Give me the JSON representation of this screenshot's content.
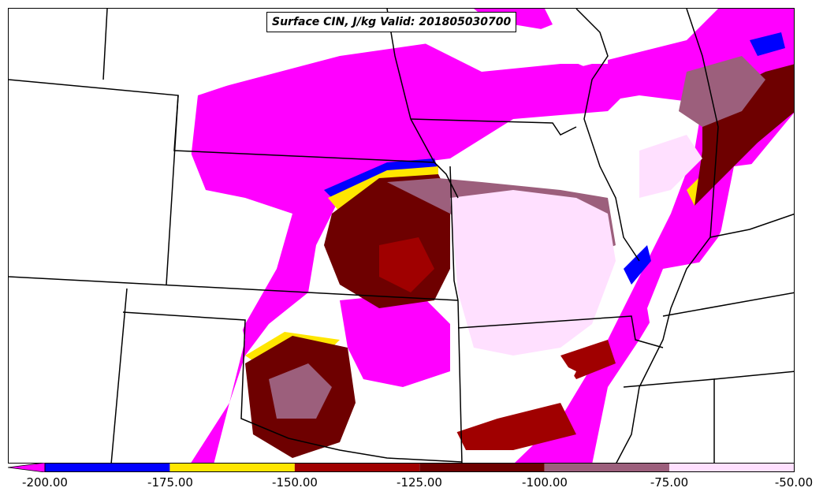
{
  "map": {
    "title": "Surface CIN, J/kg Valid: 201805030700",
    "colors": {
      "magenta": "#ff00ff",
      "blue": "#0000ff",
      "yellow": "#ffe600",
      "red": "#a00000",
      "darkred": "#6e0000",
      "mauve": "#9c5f7c",
      "pink": "#ffe0ff",
      "white": "#ffffff",
      "boundary": "#000000"
    }
  },
  "colorbar": {
    "ticks": [
      "-200.00",
      "-175.00",
      "-150.00",
      "-125.00",
      "-100.00",
      "-75.00",
      "-50.00"
    ],
    "bins": [
      {
        "range": [
          -200,
          -175
        ],
        "color": "#0000ff"
      },
      {
        "range": [
          -175,
          -150
        ],
        "color": "#ffe600"
      },
      {
        "range": [
          -150,
          -125
        ],
        "color": "#a00000"
      },
      {
        "range": [
          -125,
          -100
        ],
        "color": "#6e0000"
      },
      {
        "range": [
          -100,
          -75
        ],
        "color": "#9c5f7c"
      },
      {
        "range": [
          -75,
          -50
        ],
        "color": "#ffe0ff"
      }
    ],
    "under_color": "#ff00ff"
  }
}
